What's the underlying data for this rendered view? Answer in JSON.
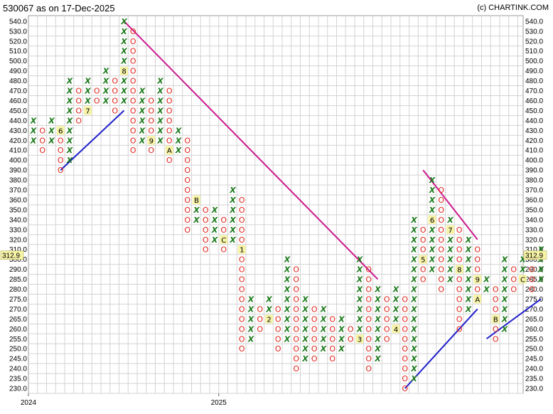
{
  "header": {
    "title": "530067 as on 17-Dec-2025",
    "credit": "(c) CHARTINK.COM"
  },
  "chart_data": {
    "type": "point-and-figure",
    "title": "530067 as on 17-Dec-2025",
    "boxes": [
      230,
      235,
      240,
      245,
      250,
      255,
      260,
      265,
      270,
      275,
      280,
      285,
      290,
      300,
      310,
      320,
      330,
      340,
      350,
      360,
      370,
      380,
      390,
      400,
      410,
      420,
      430,
      440,
      450,
      460,
      470,
      480,
      490,
      500,
      510,
      520,
      530,
      540
    ],
    "ylim": [
      230,
      540
    ],
    "y_ticks": [
      "230.0",
      "235.0",
      "240.0",
      "245.0",
      "250.0",
      "255.0",
      "260.0",
      "265.0",
      "270.0",
      "275.0",
      "280.0",
      "285.0",
      "290.0",
      "300.0",
      "310.0",
      "320.0",
      "330.0",
      "340.0",
      "350.0",
      "360.0",
      "370.0",
      "380.0",
      "390.0",
      "400.0",
      "410.0",
      "420.0",
      "430.0",
      "440.0",
      "450.0",
      "460.0",
      "470.0",
      "480.0",
      "490.0",
      "500.0",
      "510.0",
      "520.0",
      "530.0",
      "540.0"
    ],
    "x_labels": [
      {
        "col": 0,
        "text": "2024"
      },
      {
        "col": 21,
        "text": "2025"
      }
    ],
    "last_price": "312.9",
    "grid": true,
    "columns": [
      {
        "type": "X",
        "low": 420,
        "high": 440
      },
      {
        "type": "O",
        "low": 410,
        "high": 430
      },
      {
        "type": "X",
        "low": 420,
        "high": 440
      },
      {
        "type": "O",
        "low": 390,
        "high": 430,
        "marks": [
          {
            "at": 430,
            "text": "6"
          }
        ]
      },
      {
        "type": "X",
        "low": 400,
        "high": 480
      },
      {
        "type": "O",
        "low": 440,
        "high": 470
      },
      {
        "type": "X",
        "low": 450,
        "high": 480,
        "marks": [
          {
            "at": 450,
            "text": "7"
          }
        ]
      },
      {
        "type": "O",
        "low": 460,
        "high": 470
      },
      {
        "type": "X",
        "low": 460,
        "high": 490
      },
      {
        "type": "O",
        "low": 450,
        "high": 480
      },
      {
        "type": "X",
        "low": 460,
        "high": 540,
        "marks": [
          {
            "at": 490,
            "text": "8"
          }
        ]
      },
      {
        "type": "O",
        "low": 410,
        "high": 530
      },
      {
        "type": "X",
        "low": 420,
        "high": 470
      },
      {
        "type": "O",
        "low": 410,
        "high": 460,
        "marks": [
          {
            "at": 420,
            "text": "9"
          }
        ]
      },
      {
        "type": "X",
        "low": 420,
        "high": 480
      },
      {
        "type": "O",
        "low": 400,
        "high": 470,
        "marks": [
          {
            "at": 410,
            "text": "A"
          }
        ]
      },
      {
        "type": "X",
        "low": 410,
        "high": 430
      },
      {
        "type": "O",
        "low": 330,
        "high": 420
      },
      {
        "type": "X",
        "low": 340,
        "high": 360,
        "marks": [
          {
            "at": 360,
            "text": "B"
          }
        ]
      },
      {
        "type": "O",
        "low": 310,
        "high": 350
      },
      {
        "type": "X",
        "low": 320,
        "high": 350
      },
      {
        "type": "O",
        "low": 310,
        "high": 340,
        "marks": [
          {
            "at": 320,
            "text": "C"
          }
        ]
      },
      {
        "type": "X",
        "low": 320,
        "high": 370
      },
      {
        "type": "O",
        "low": 250,
        "high": 360,
        "marks": [
          {
            "at": 310,
            "text": "1"
          }
        ]
      },
      {
        "type": "X",
        "low": 255,
        "high": 275
      },
      {
        "type": "O",
        "low": 260,
        "high": 270
      },
      {
        "type": "X",
        "low": 265,
        "high": 275,
        "marks": [
          {
            "at": 265,
            "text": "2"
          }
        ]
      },
      {
        "type": "O",
        "low": 250,
        "high": 270
      },
      {
        "type": "X",
        "low": 255,
        "high": 300
      },
      {
        "type": "O",
        "low": 240,
        "high": 290
      },
      {
        "type": "X",
        "low": 245,
        "high": 275
      },
      {
        "type": "O",
        "low": 245,
        "high": 270
      },
      {
        "type": "X",
        "low": 250,
        "high": 270
      },
      {
        "type": "O",
        "low": 245,
        "high": 265
      },
      {
        "type": "X",
        "low": 250,
        "high": 265
      },
      {
        "type": "O",
        "low": 255,
        "high": 260
      },
      {
        "type": "X",
        "low": 255,
        "high": 300,
        "marks": [
          {
            "at": 255,
            "text": "3"
          }
        ]
      },
      {
        "type": "O",
        "low": 240,
        "high": 290
      },
      {
        "type": "X",
        "low": 245,
        "high": 280
      },
      {
        "type": "O",
        "low": 255,
        "high": 275
      },
      {
        "type": "X",
        "low": 260,
        "high": 280,
        "marks": [
          {
            "at": 260,
            "text": "4"
          }
        ]
      },
      {
        "type": "O",
        "low": 230,
        "high": 275
      },
      {
        "type": "X",
        "low": 235,
        "high": 340
      },
      {
        "type": "O",
        "low": 285,
        "high": 330,
        "marks": [
          {
            "at": 300,
            "text": "5"
          }
        ]
      },
      {
        "type": "X",
        "low": 290,
        "high": 380,
        "marks": [
          {
            "at": 340,
            "text": "6"
          }
        ]
      },
      {
        "type": "O",
        "low": 280,
        "high": 370
      },
      {
        "type": "X",
        "low": 285,
        "high": 340,
        "marks": [
          {
            "at": 330,
            "text": "7"
          }
        ]
      },
      {
        "type": "O",
        "low": 260,
        "high": 330,
        "marks": [
          {
            "at": 290,
            "text": "8"
          }
        ]
      },
      {
        "type": "X",
        "low": 270,
        "high": 320
      },
      {
        "type": "O",
        "low": 275,
        "high": 310,
        "marks": [
          {
            "at": 275,
            "text": "A"
          },
          {
            "at": 285,
            "text": "9"
          }
        ]
      },
      {
        "type": "X",
        "low": 280,
        "high": 285
      },
      {
        "type": "O",
        "low": 255,
        "high": 280,
        "marks": [
          {
            "at": 265,
            "text": "B"
          }
        ]
      },
      {
        "type": "X",
        "low": 260,
        "high": 300
      },
      {
        "type": "O",
        "low": 280,
        "high": 290
      },
      {
        "type": "X",
        "low": 285,
        "high": 300,
        "marks": [
          {
            "at": 285,
            "text": "C"
          }
        ]
      },
      {
        "type": "O",
        "low": 280,
        "high": 290
      },
      {
        "type": "X",
        "low": 285,
        "high": 310
      }
    ],
    "trendlines": [
      {
        "kind": "resistance",
        "color": "#cc1a8f",
        "from": {
          "col": 10,
          "value": 540
        },
        "to": {
          "col": 38,
          "value": 285
        }
      },
      {
        "kind": "support",
        "color": "#1f1fcc",
        "from": {
          "col": 3,
          "value": 390
        },
        "to": {
          "col": 10,
          "value": 450
        }
      },
      {
        "kind": "resistance",
        "color": "#cc1a8f",
        "from": {
          "col": 43,
          "value": 390
        },
        "to": {
          "col": 49,
          "value": 320
        }
      },
      {
        "kind": "support",
        "color": "#1f1fcc",
        "from": {
          "col": 41,
          "value": 230
        },
        "to": {
          "col": 49,
          "value": 270
        }
      },
      {
        "kind": "support",
        "color": "#1f1fcc",
        "from": {
          "col": 50,
          "value": 255
        },
        "to": {
          "col": 56,
          "value": 275
        }
      }
    ]
  }
}
